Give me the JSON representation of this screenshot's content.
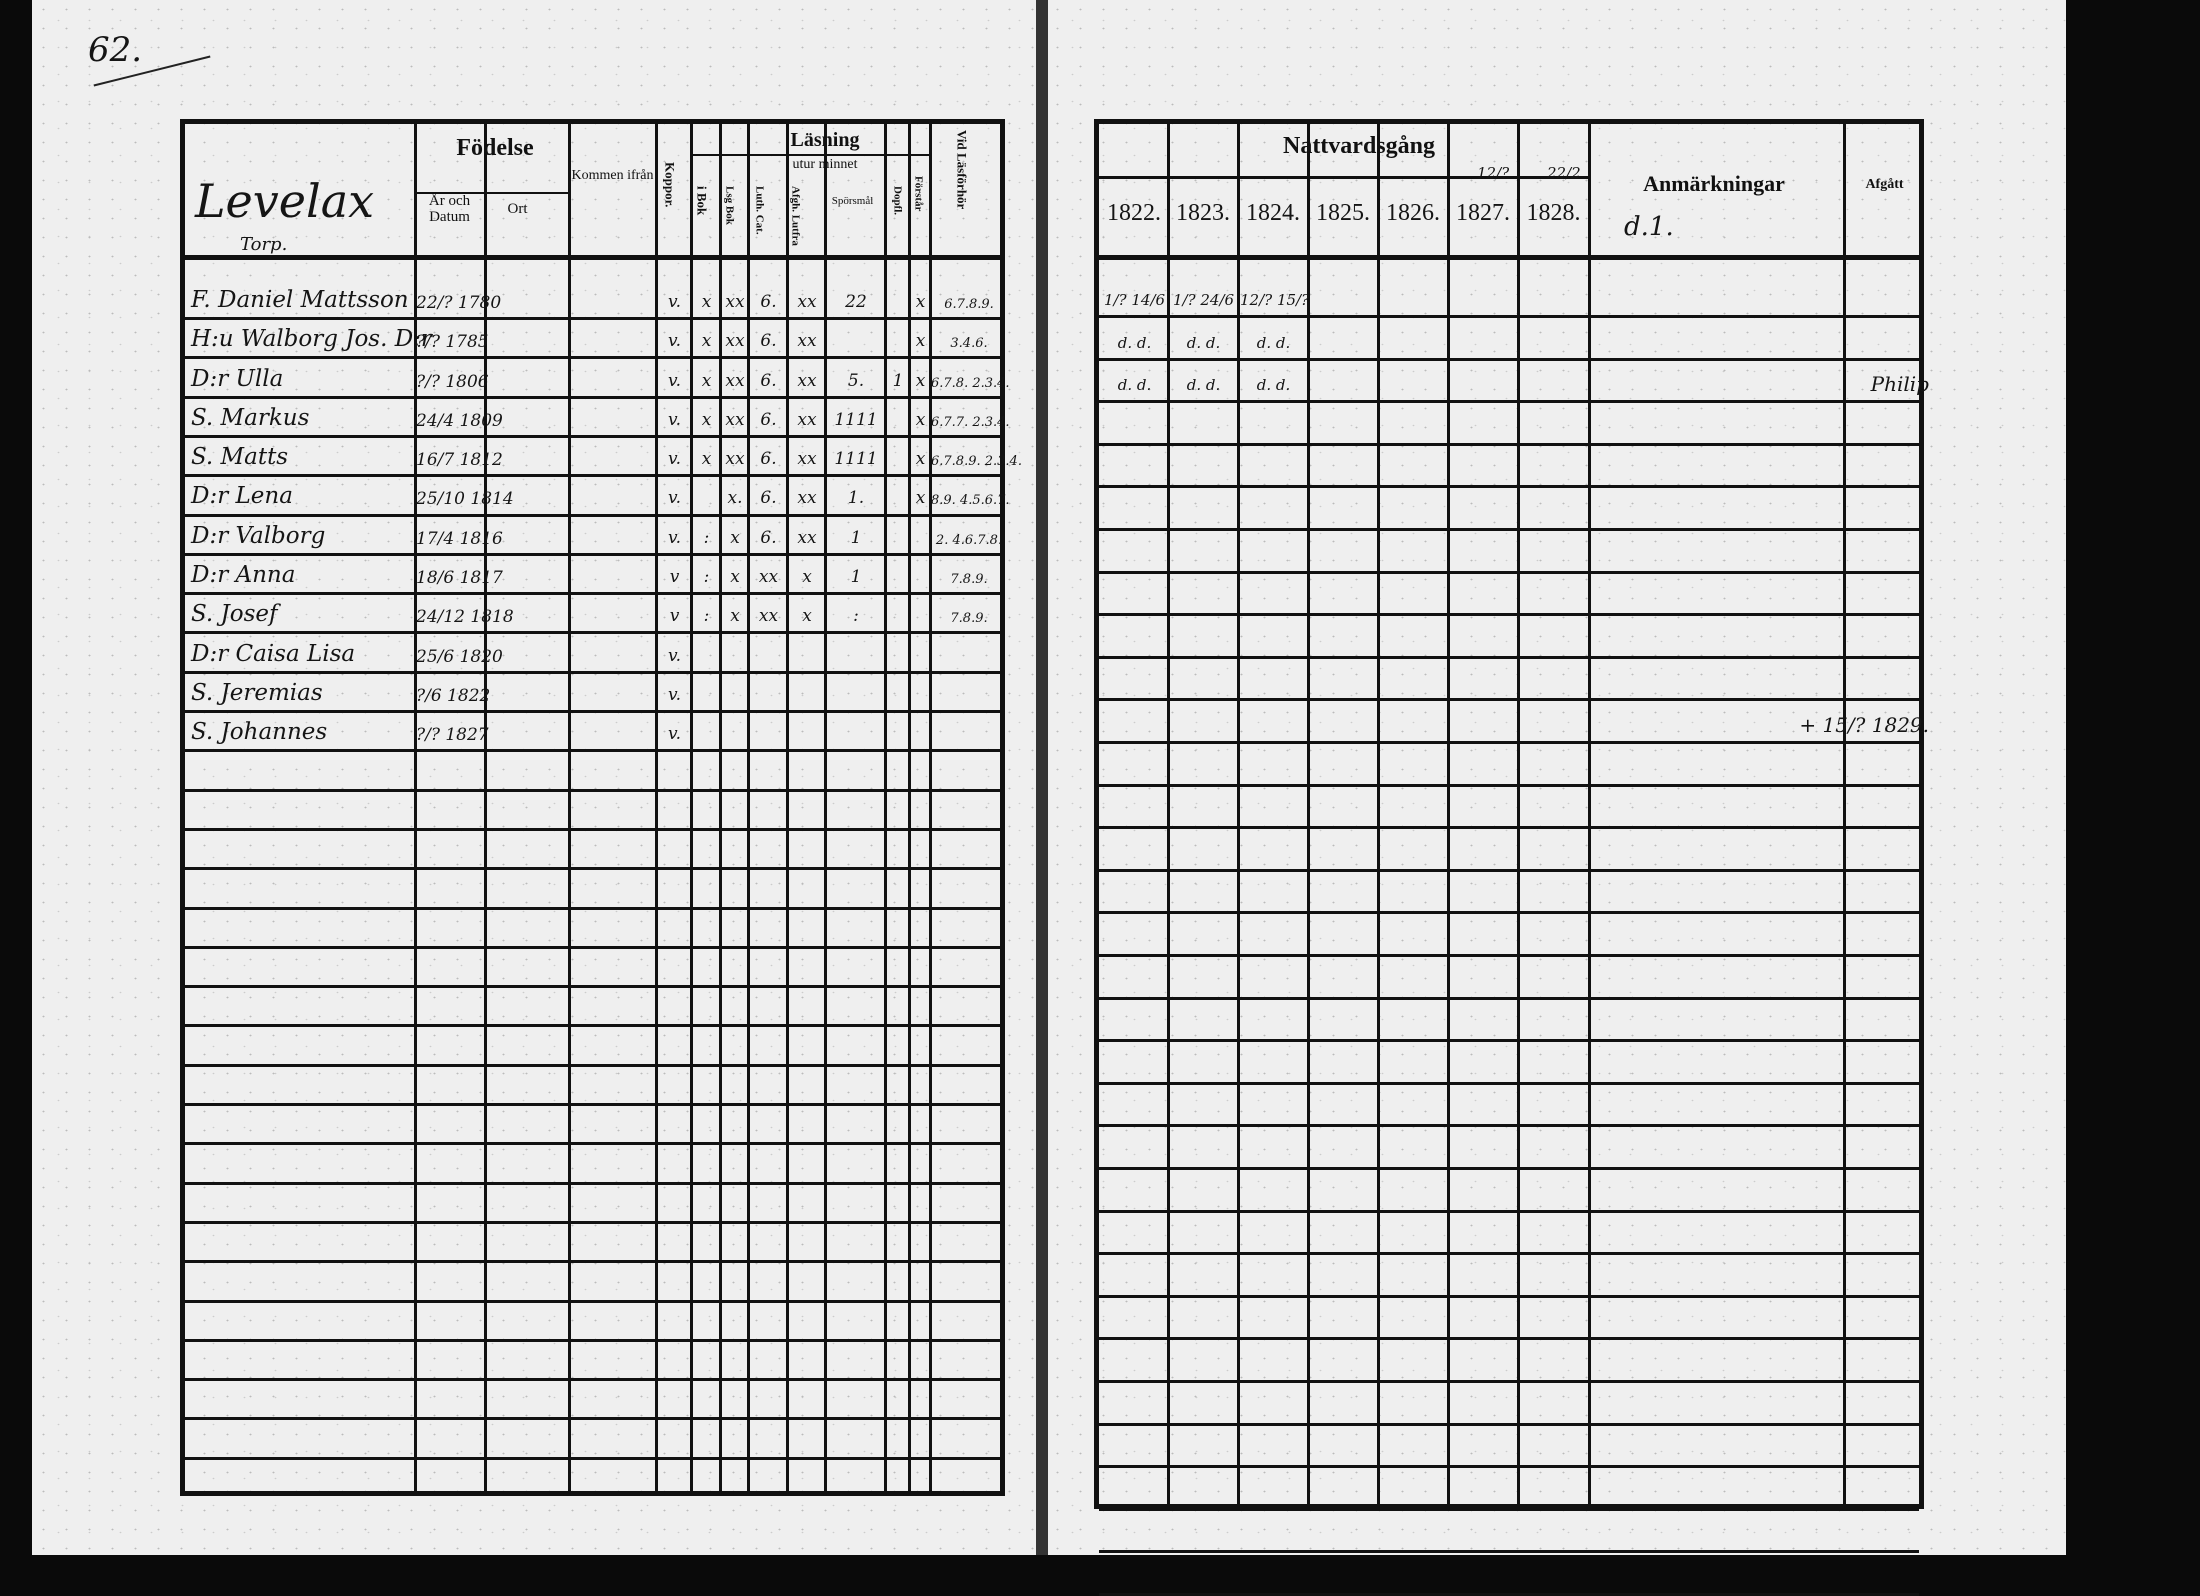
{
  "page_number": "62.",
  "left": {
    "village": "Levelax",
    "sub": "Torp.",
    "headers": {
      "fodelse": "Födelse",
      "ar_datum": "År och Datum",
      "ort": "Ort",
      "kommen": "Kommen ifrån",
      "koppor": "Koppor.",
      "lasning": "Läsning",
      "utur_minnet": "utur minnet",
      "i_bok": "i Bok",
      "lsg_bok": "Lsg Bok",
      "luth_cat": "Luth. Cat.",
      "afgh": "Afgh. Lutfra",
      "sporsmal": "Spörsmål",
      "dopfl": "Dopfl.",
      "forstar": "Förstår",
      "vid": "Vid Läsförhör"
    },
    "rows": [
      {
        "name": "F. Daniel Mattsson",
        "birth": "22/? 1780",
        "koppor": "v.",
        "bok": "x",
        "lsg": "xx",
        "cat": "6.",
        "afgh": "xx",
        "spor": "22",
        "dop": "",
        "forst": "x",
        "vid": "6.7.8.9."
      },
      {
        "name": "H:u Walborg Jos. D:r",
        "birth": "?/? 1785",
        "koppor": "v.",
        "bok": "x",
        "lsg": "xx",
        "cat": "6.",
        "afgh": "xx",
        "spor": "",
        "dop": "",
        "forst": "x",
        "vid": "3.4.6."
      },
      {
        "name": "D:r Ulla",
        "birth": "?/? 1806",
        "koppor": "v.",
        "bok": "x",
        "lsg": "xx",
        "cat": "6.",
        "afgh": "xx",
        "spor": "5.",
        "dop": "1",
        "forst": "x",
        "vid": "6.7.8. 2.3.4."
      },
      {
        "name": "S. Markus",
        "birth": "24/4 1809",
        "koppor": "v.",
        "bok": "x",
        "lsg": "xx",
        "cat": "6.",
        "afgh": "xx",
        "spor": "1111",
        "dop": "",
        "forst": "x",
        "vid": "6.7.7. 2.3.4."
      },
      {
        "name": "S. Matts",
        "birth": "16/7 1812",
        "koppor": "v.",
        "bok": "x",
        "lsg": "xx",
        "cat": "6.",
        "afgh": "xx",
        "spor": "1111",
        "dop": "",
        "forst": "x",
        "vid": "6.7.8.9. 2.3.4."
      },
      {
        "name": "D:r Lena",
        "birth": "25/10 1814",
        "koppor": "v.",
        "bok": "",
        "lsg": "x.",
        "cat": "6.",
        "afgh": "xx",
        "spor": "1.",
        "dop": "",
        "forst": "x",
        "vid": "8.9. 4.5.6.7."
      },
      {
        "name": "D:r Valborg",
        "birth": "17/4 1816",
        "koppor": "v.",
        "bok": ":",
        "lsg": "x",
        "cat": "6.",
        "afgh": "xx",
        "spor": "1",
        "dop": "",
        "forst": "",
        "vid": "2. 4.6.7.8."
      },
      {
        "name": "D:r Anna",
        "birth": "18/6 1817",
        "koppor": "v",
        "bok": ":",
        "lsg": "x",
        "cat": "xx",
        "afgh": "x",
        "spor": "1",
        "dop": "",
        "forst": "",
        "vid": "7.8.9."
      },
      {
        "name": "S. Josef",
        "birth": "24/12 1818",
        "koppor": "v",
        "bok": ":",
        "lsg": "x",
        "cat": "xx",
        "afgh": "x",
        "spor": ":",
        "dop": "",
        "forst": "",
        "vid": "7.8.9."
      },
      {
        "name": "D:r Caisa Lisa",
        "birth": "25/6 1820",
        "koppor": "v.",
        "bok": "",
        "lsg": "",
        "cat": "",
        "afgh": "",
        "spor": "",
        "dop": "",
        "forst": "",
        "vid": ""
      },
      {
        "name": "S. Jeremias",
        "birth": "?/6 1822",
        "koppor": "v.",
        "bok": "",
        "lsg": "",
        "cat": "",
        "afgh": "",
        "spor": "",
        "dop": "",
        "forst": "",
        "vid": ""
      },
      {
        "name": "S. Johannes",
        "birth": "?/? 1827",
        "koppor": "v.",
        "bok": "",
        "lsg": "",
        "cat": "",
        "afgh": "",
        "spor": "",
        "dop": "",
        "forst": "",
        "vid": ""
      }
    ]
  },
  "right": {
    "headers": {
      "nattvardsgang": "Nattvardsgång",
      "years": [
        "1822.",
        "1823.",
        "1824.",
        "1825.",
        "1826.",
        "1827.",
        "1828."
      ],
      "year_notes": [
        "",
        "",
        "",
        "",
        "",
        "12/?",
        "22/2"
      ],
      "anmarkningar": "Anmärkningar",
      "anm_note": "d.1.",
      "afgatt": "Afgått"
    },
    "rows": [
      {
        "marks": [
          "1/? 14/6",
          "1/? 24/6",
          "12/? 15/?",
          "",
          "",
          "",
          ""
        ],
        "anm": "",
        "afgatt": ""
      },
      {
        "marks": [
          "d. d.",
          "d. d.",
          "d. d.",
          "",
          "",
          "",
          ""
        ],
        "anm": "",
        "afgatt": ""
      },
      {
        "marks": [
          "d. d.",
          "d. d.",
          "d. d.",
          "",
          "",
          "",
          ""
        ],
        "anm": "",
        "afgatt": "Philip"
      },
      {
        "marks": [
          "",
          "",
          "",
          "",
          "",
          "",
          ""
        ],
        "anm": "",
        "afgatt": ""
      },
      {
        "marks": [
          "",
          "",
          "",
          "",
          "",
          "",
          ""
        ],
        "anm": "",
        "afgatt": ""
      },
      {
        "marks": [
          "",
          "",
          "",
          "",
          "",
          "",
          ""
        ],
        "anm": "",
        "afgatt": ""
      },
      {
        "marks": [
          "",
          "",
          "",
          "",
          "",
          "",
          ""
        ],
        "anm": "",
        "afgatt": ""
      },
      {
        "marks": [
          "",
          "",
          "",
          "",
          "",
          "",
          ""
        ],
        "anm": "",
        "afgatt": ""
      },
      {
        "marks": [
          "",
          "",
          "",
          "",
          "",
          "",
          ""
        ],
        "anm": "",
        "afgatt": ""
      },
      {
        "marks": [
          "",
          "",
          "",
          "",
          "",
          "",
          ""
        ],
        "anm": "",
        "afgatt": ""
      },
      {
        "marks": [
          "",
          "",
          "",
          "",
          "",
          "",
          ""
        ],
        "anm": "",
        "afgatt": "+ 15/? 1829."
      },
      {
        "marks": [
          "",
          "",
          "",
          "",
          "",
          "",
          ""
        ],
        "anm": "",
        "afgatt": ""
      }
    ]
  }
}
